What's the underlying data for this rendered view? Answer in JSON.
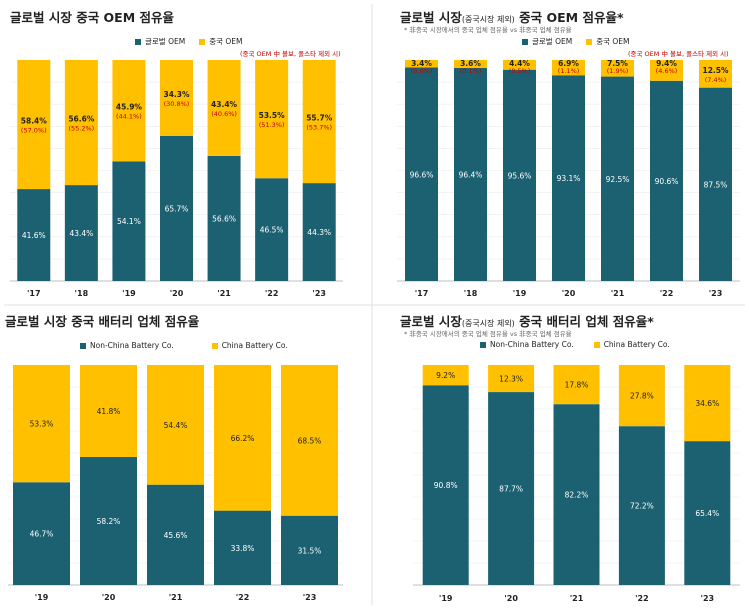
{
  "colors": {
    "teal": "#1c6172",
    "gold": "#ffc000",
    "red": "#c00000",
    "grid": "#d9d9d9"
  },
  "chart_data": [
    {
      "type": "bar",
      "stacked": true,
      "title": "글로벌 시장 중국 OEM 점유율",
      "note": "(중국 OEM 中 볼보, 폴스타 제외 시)",
      "categories": [
        "'17",
        "'18",
        "'19",
        "'20",
        "'21",
        "'22",
        "'23"
      ],
      "ylim": [
        0,
        100
      ],
      "series": [
        {
          "name": "글로벌 OEM",
          "color": "#1c6172",
          "values": [
            41.6,
            43.4,
            54.1,
            65.7,
            56.6,
            46.5,
            44.3
          ]
        },
        {
          "name": "중국 OEM",
          "color": "#ffc000",
          "values": [
            58.4,
            56.6,
            45.9,
            34.3,
            43.4,
            53.5,
            55.7
          ],
          "sub_labels": [
            "(57.0%)",
            "(55.2%)",
            "(44.1%)",
            "(30.8%)",
            "(40.6%)",
            "(51.3%)",
            "(53.7%)"
          ]
        }
      ]
    },
    {
      "type": "bar",
      "stacked": true,
      "title": "글로벌 시장",
      "title_small": "(중국시장 제외)",
      "title_rest": " 중국 OEM 점유율*",
      "subtitle": "* 非중국 시장에서의 중국 업체 점유율 vs 非중국 업체 점유율",
      "note": "(중국 OEM 中 볼보, 폴스타 제외 시)",
      "categories": [
        "'17",
        "'18",
        "'19",
        "'20",
        "'21",
        "'22",
        "'23"
      ],
      "ylim": [
        0,
        100
      ],
      "series": [
        {
          "name": "글로벌 OEM",
          "color": "#1c6172",
          "values": [
            96.6,
            96.4,
            95.6,
            93.1,
            92.5,
            90.6,
            87.5
          ]
        },
        {
          "name": "중국 OEM",
          "color": "#ffc000",
          "values": [
            3.4,
            3.6,
            4.4,
            6.9,
            7.5,
            9.4,
            12.5
          ],
          "sub_labels": [
            "(0.0%)",
            "(0.1%)",
            "(0.5%)",
            "(1.1%)",
            "(1.9%)",
            "(4.6%)",
            "(7.4%)"
          ]
        }
      ]
    },
    {
      "type": "bar",
      "stacked": true,
      "title": "글로벌 시장 중국 배터리 업체 점유율",
      "categories": [
        "'19",
        "'20",
        "'21",
        "'22",
        "'23"
      ],
      "ylim": [
        0,
        100
      ],
      "series": [
        {
          "name": "Non-China Battery Co.",
          "color": "#1c6172",
          "values": [
            46.7,
            58.2,
            45.6,
            33.8,
            31.5
          ]
        },
        {
          "name": "China Battery Co.",
          "color": "#ffc000",
          "values": [
            53.3,
            41.8,
            54.4,
            66.2,
            68.5
          ]
        }
      ]
    },
    {
      "type": "bar",
      "stacked": true,
      "title": "글로벌 시장",
      "title_small": "(중국시장 제외)",
      "title_rest": " 중국 배터리 업체 점유율*",
      "subtitle": "* 非중국 시장에서의 중국 업체 점유율 vs 非중국 업체 점유율",
      "categories": [
        "'19",
        "'20",
        "'21",
        "'22",
        "'23"
      ],
      "ylim": [
        0,
        100
      ],
      "series": [
        {
          "name": "Non-China Battery Co.",
          "color": "#1c6172",
          "values": [
            90.8,
            87.7,
            82.2,
            72.2,
            65.4
          ]
        },
        {
          "name": "China Battery Co.",
          "color": "#ffc000",
          "values": [
            9.2,
            12.3,
            17.8,
            27.8,
            34.6
          ]
        }
      ]
    }
  ]
}
